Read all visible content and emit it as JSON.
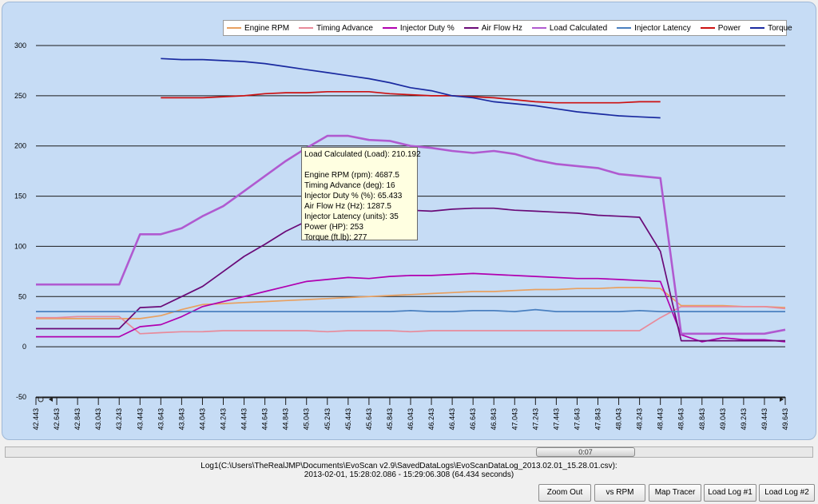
{
  "chart_data": {
    "type": "line",
    "x": [
      42.443,
      42.643,
      42.843,
      43.043,
      43.243,
      43.443,
      43.643,
      43.843,
      44.043,
      44.243,
      44.443,
      44.643,
      44.843,
      45.043,
      45.243,
      45.443,
      45.643,
      45.843,
      46.043,
      46.243,
      46.443,
      46.643,
      46.843,
      47.043,
      47.243,
      47.443,
      47.643,
      47.843,
      48.043,
      48.243,
      48.443,
      48.643,
      48.843,
      49.043,
      49.243,
      49.443,
      49.643
    ],
    "x_tick_labels": [
      "42.443",
      "42.643",
      "42.843",
      "43.043",
      "43.243",
      "43.443",
      "43.643",
      "43.843",
      "44.043",
      "44.243",
      "44.443",
      "44.643",
      "44.843",
      "45.043",
      "45.243",
      "45.443",
      "45.643",
      "45.843",
      "46.043",
      "46.243",
      "46.443",
      "46.643",
      "46.843",
      "47.043",
      "47.243",
      "47.443",
      "47.643",
      "47.843",
      "48.043",
      "48.243",
      "48.443",
      "48.643",
      "48.843",
      "49.043",
      "49.243",
      "49.443",
      "49.643"
    ],
    "ylim": [
      -50,
      300
    ],
    "y_ticks": [
      300,
      250,
      200,
      150,
      100,
      50,
      0,
      -50
    ],
    "grid": true,
    "legend_position": "top",
    "series": [
      {
        "name": "Engine RPM",
        "color": "#e8a060",
        "values": [
          28,
          28,
          28,
          28,
          28,
          28,
          31,
          37,
          42,
          43,
          44,
          45,
          46,
          47,
          48,
          49,
          50,
          51,
          52,
          53,
          54,
          55,
          55,
          56,
          57,
          57,
          58,
          58,
          59,
          59,
          58,
          41,
          41,
          41,
          40,
          40,
          39
        ]
      },
      {
        "name": "Timing Advance",
        "color": "#e88a9a",
        "values": [
          29,
          29,
          30,
          30,
          30,
          13,
          14,
          15,
          15,
          16,
          16,
          16,
          16,
          16,
          15,
          16,
          16,
          16,
          15,
          16,
          16,
          16,
          16,
          16,
          16,
          16,
          16,
          16,
          16,
          16,
          29,
          40,
          40,
          40,
          40,
          40,
          38
        ]
      },
      {
        "name": "Injector Duty %",
        "color": "#b000b0",
        "values": [
          10,
          10,
          10,
          10,
          10,
          20,
          22,
          30,
          40,
          45,
          50,
          55,
          60,
          65,
          67,
          69,
          68,
          70,
          71,
          71,
          72,
          73,
          72,
          71,
          70,
          69,
          68,
          68,
          67,
          66,
          65,
          12,
          5,
          9,
          7,
          7,
          5
        ]
      },
      {
        "name": "Air Flow Hz",
        "color": "#6a0a78",
        "values": [
          18,
          18,
          18,
          18,
          18,
          39,
          40,
          50,
          60,
          75,
          90,
          102,
          115,
          125,
          130,
          132,
          134,
          135,
          136,
          135,
          137,
          138,
          138,
          136,
          135,
          134,
          133,
          131,
          130,
          129,
          95,
          6,
          6,
          6,
          6,
          6,
          6
        ]
      },
      {
        "name": "Load Calculated",
        "color": "#b05ad0",
        "values": [
          62,
          62,
          62,
          62,
          62,
          112,
          112,
          118,
          130,
          140,
          155,
          170,
          185,
          198,
          210,
          210,
          206,
          205,
          200,
          198,
          195,
          193,
          195,
          192,
          186,
          182,
          180,
          178,
          172,
          170,
          168,
          13,
          13,
          13,
          13,
          13,
          17
        ]
      },
      {
        "name": "Injector Latency",
        "color": "#4a80c0",
        "values": [
          35,
          35,
          35,
          35,
          35,
          35,
          35,
          35,
          35,
          35,
          35,
          35,
          35,
          35,
          35,
          35,
          35,
          35,
          36,
          35,
          35,
          36,
          36,
          35,
          37,
          35,
          35,
          35,
          35,
          36,
          35,
          35,
          35,
          35,
          35,
          35,
          35
        ]
      },
      {
        "name": "Power",
        "color": "#cc1111",
        "values": [
          null,
          null,
          null,
          null,
          null,
          null,
          248,
          248,
          248,
          249,
          250,
          252,
          253,
          253,
          254,
          254,
          254,
          252,
          251,
          250,
          250,
          249,
          248,
          246,
          244,
          243,
          243,
          243,
          243,
          244,
          244,
          null,
          null,
          null,
          null,
          null,
          null
        ]
      },
      {
        "name": "Torque",
        "color": "#1a2aa0",
        "values": [
          null,
          null,
          null,
          null,
          null,
          null,
          287,
          286,
          286,
          285,
          284,
          282,
          279,
          276,
          273,
          270,
          267,
          263,
          258,
          255,
          250,
          248,
          244,
          242,
          240,
          237,
          234,
          232,
          230,
          229,
          228,
          null,
          null,
          null,
          null,
          null,
          null
        ]
      }
    ]
  },
  "tooltip": {
    "title": "Load Calculated (Load): 210.192",
    "lines": [
      "Engine RPM (rpm): 4687.5",
      "Timing Advance (deg): 16",
      "Injector Duty % (%): 65.433",
      "Air Flow Hz (Hz): 1287.5",
      "Injector Latency (units): 35",
      "Power (HP): 253",
      "Torque (ft.lb): 277"
    ]
  },
  "scrollbar": {
    "thumb_label": "0:07"
  },
  "log_info": {
    "line1": "Log1(C:\\Users\\TheRealJMP\\Documents\\EvoScan v2.9\\SavedDataLogs\\EvoScanDataLog_2013.02.01_15.28.01.csv):",
    "line2": "2013-02-01,  15:28:02.086 - 15:29:06.308 (64.434 seconds)"
  },
  "buttons": {
    "zoom_out": "Zoom Out",
    "vs_rpm": "vs RPM",
    "map_tracer": "Map Tracer",
    "load_log_1": "Load Log #1",
    "load_log_2": "Load Log #2"
  }
}
